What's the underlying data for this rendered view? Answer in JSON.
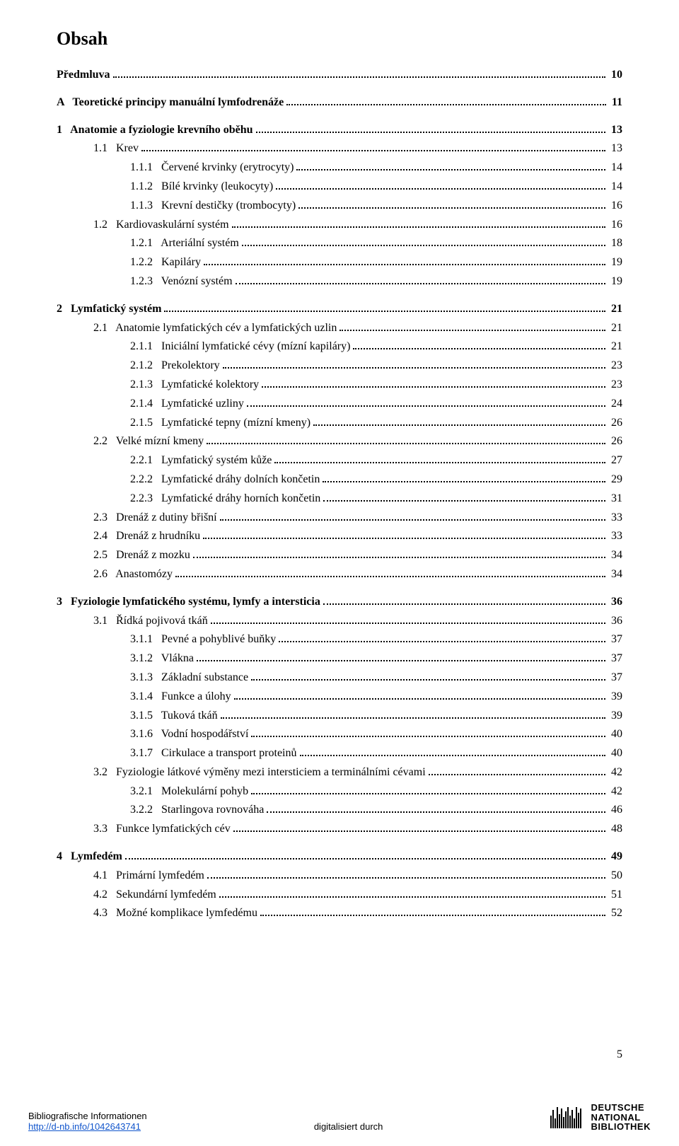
{
  "title": "Obsah",
  "page_number": "5",
  "footer": {
    "left_line1": "Bibliografische Informationen",
    "left_link": "http://d-nb.info/1042643741",
    "digi": "digitalisiert durch",
    "dnb_l1": "DEUTSCHE",
    "dnb_l2": "NATIONAL",
    "dnb_l3": "BIBLIOTHEK"
  },
  "toc": [
    {
      "lines": [
        {
          "pre": "",
          "num": "",
          "label": "Předmluva",
          "page": "10",
          "bold": true,
          "indent": 0
        }
      ]
    },
    {
      "lines": [
        {
          "pre": "A   ",
          "num": "",
          "label": "Teoretické principy manuální lymfodrenáže",
          "page": "11",
          "bold_all": true,
          "indent": 0
        }
      ]
    },
    {
      "lines": [
        {
          "pre": "1   ",
          "num": "",
          "label": "Anatomie a fyziologie krevního oběhu",
          "page": "13",
          "bold": true,
          "indent": 0
        },
        {
          "pre": "    ",
          "num": "1.1",
          "label": "Krev",
          "page": "13",
          "indent": 1
        },
        {
          "pre": "        ",
          "num": "1.1.1",
          "label": "Červené krvinky (erytrocyty)",
          "page": "14",
          "indent": 2
        },
        {
          "pre": "        ",
          "num": "1.1.2",
          "label": "Bílé krvinky (leukocyty)",
          "page": "14",
          "indent": 2
        },
        {
          "pre": "        ",
          "num": "1.1.3",
          "label": "Krevní destičky (trombocyty)",
          "page": "16",
          "indent": 2
        },
        {
          "pre": "    ",
          "num": "1.2",
          "label": "Kardiovaskulární systém",
          "page": "16",
          "indent": 1
        },
        {
          "pre": "        ",
          "num": "1.2.1",
          "label": "Arteriální systém",
          "page": "18",
          "indent": 2
        },
        {
          "pre": "        ",
          "num": "1.2.2",
          "label": "Kapiláry",
          "page": "19",
          "indent": 2
        },
        {
          "pre": "        ",
          "num": "1.2.3",
          "label": "Venózní systém",
          "page": "19",
          "indent": 2
        }
      ]
    },
    {
      "lines": [
        {
          "pre": "2   ",
          "num": "",
          "label": "Lymfatický systém",
          "page": "21",
          "bold": true,
          "indent": 0
        },
        {
          "pre": "    ",
          "num": "2.1",
          "label": "Anatomie lymfatických cév a lymfatických uzlin",
          "page": "21",
          "indent": 1
        },
        {
          "pre": "        ",
          "num": "2.1.1",
          "label": "Iniciální lymfatické cévy (mízní kapiláry)",
          "page": "21",
          "indent": 2
        },
        {
          "pre": "        ",
          "num": "2.1.2",
          "label": "Prekolektory",
          "page": "23",
          "indent": 2
        },
        {
          "pre": "        ",
          "num": "2.1.3",
          "label": "Lymfatické kolektory",
          "page": "23",
          "indent": 2
        },
        {
          "pre": "        ",
          "num": "2.1.4",
          "label": "Lymfatické uzliny",
          "page": "24",
          "indent": 2
        },
        {
          "pre": "        ",
          "num": "2.1.5",
          "label": "Lymfatické tepny (mízní kmeny)",
          "page": "26",
          "indent": 2
        },
        {
          "pre": "    ",
          "num": "2.2",
          "label": "Velké mízní kmeny",
          "page": "26",
          "indent": 1
        },
        {
          "pre": "        ",
          "num": "2.2.1",
          "label": "Lymfatický systém kůže",
          "page": "27",
          "indent": 2
        },
        {
          "pre": "        ",
          "num": "2.2.2",
          "label": "Lymfatické dráhy dolních končetin",
          "page": "29",
          "indent": 2
        },
        {
          "pre": "        ",
          "num": "2.2.3",
          "label": "Lymfatické dráhy horních končetin",
          "page": "31",
          "indent": 2
        },
        {
          "pre": "    ",
          "num": "2.3",
          "label": "Drenáž z dutiny břišní",
          "page": "33",
          "indent": 1
        },
        {
          "pre": "    ",
          "num": "2.4",
          "label": "Drenáž z hrudníku",
          "page": "33",
          "indent": 1
        },
        {
          "pre": "    ",
          "num": "2.5",
          "label": "Drenáž z mozku",
          "page": "34",
          "indent": 1
        },
        {
          "pre": "    ",
          "num": "2.6",
          "label": "Anastomózy",
          "page": "34",
          "indent": 1
        }
      ]
    },
    {
      "lines": [
        {
          "pre": "3   ",
          "num": "",
          "label": "Fyziologie lymfatického systému, lymfy a intersticia",
          "page": "36",
          "bold": true,
          "indent": 0
        },
        {
          "pre": "    ",
          "num": "3.1",
          "label": "Řídká pojivová tkáň",
          "page": "36",
          "indent": 1
        },
        {
          "pre": "        ",
          "num": "3.1.1",
          "label": "Pevné a pohyblivé buňky",
          "page": "37",
          "indent": 2
        },
        {
          "pre": "        ",
          "num": "3.1.2",
          "label": "Vlákna",
          "page": "37",
          "indent": 2
        },
        {
          "pre": "        ",
          "num": "3.1.3",
          "label": "Základní substance",
          "page": "37",
          "indent": 2
        },
        {
          "pre": "        ",
          "num": "3.1.4",
          "label": "Funkce a úlohy",
          "page": "39",
          "indent": 2
        },
        {
          "pre": "        ",
          "num": "3.1.5",
          "label": "Tuková tkáň",
          "page": "39",
          "indent": 2
        },
        {
          "pre": "        ",
          "num": "3.1.6",
          "label": "Vodní hospodářství",
          "page": "40",
          "indent": 2
        },
        {
          "pre": "        ",
          "num": "3.1.7",
          "label": "Cirkulace a transport proteinů",
          "page": "40",
          "indent": 2
        },
        {
          "pre": "    ",
          "num": "3.2",
          "label": "Fyziologie látkové výměny mezi intersticiem a terminálními cévami",
          "page": "42",
          "indent": 1
        },
        {
          "pre": "        ",
          "num": "3.2.1",
          "label": "Molekulární pohyb",
          "page": "42",
          "indent": 2
        },
        {
          "pre": "        ",
          "num": "3.2.2",
          "label": "Starlingova rovnováha",
          "page": "46",
          "indent": 2
        },
        {
          "pre": "    ",
          "num": "3.3",
          "label": "Funkce lymfatických cév",
          "page": "48",
          "indent": 1
        }
      ]
    },
    {
      "lines": [
        {
          "pre": "4   ",
          "num": "",
          "label": "Lymfedém",
          "page": "49",
          "bold": true,
          "indent": 0
        },
        {
          "pre": "    ",
          "num": "4.1",
          "label": "Primární lymfedém",
          "page": "50",
          "indent": 1
        },
        {
          "pre": "    ",
          "num": "4.2",
          "label": "Sekundární lymfedém",
          "page": "51",
          "indent": 1
        },
        {
          "pre": "    ",
          "num": "4.3",
          "label": "Možné komplikace lymfedému",
          "page": "52",
          "indent": 1
        }
      ]
    }
  ]
}
